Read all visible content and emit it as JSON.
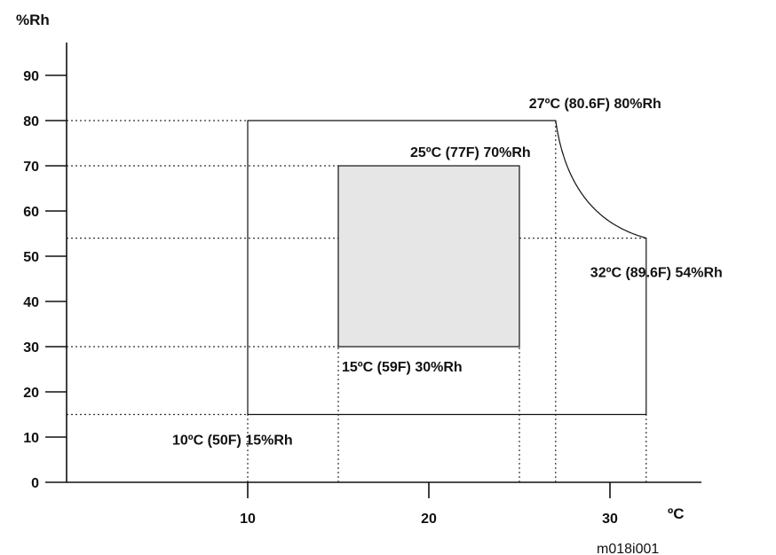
{
  "chart_data": {
    "type": "area",
    "title": "",
    "xlabel": "ºC",
    "ylabel": "%Rh",
    "xlim": [
      0,
      35
    ],
    "ylim": [
      0,
      100
    ],
    "x_ticks": [
      {
        "value": 10,
        "label": "10"
      },
      {
        "value": 20,
        "label": "20"
      },
      {
        "value": 30,
        "label": "30"
      }
    ],
    "y_ticks": [
      {
        "value": 0,
        "label": "0"
      },
      {
        "value": 10,
        "label": "10"
      },
      {
        "value": 20,
        "label": "20"
      },
      {
        "value": 30,
        "label": "30"
      },
      {
        "value": 40,
        "label": "40"
      },
      {
        "value": 50,
        "label": "50"
      },
      {
        "value": 60,
        "label": "60"
      },
      {
        "value": 70,
        "label": "70"
      },
      {
        "value": 80,
        "label": "80"
      },
      {
        "value": 90,
        "label": "90"
      }
    ],
    "regions": [
      {
        "name": "operating-range",
        "fill": "none",
        "outline": [
          {
            "x": 10,
            "y": 15
          },
          {
            "x": 10,
            "y": 80
          },
          {
            "x": 27,
            "y": 80
          },
          {
            "x": 32,
            "y": 54
          },
          {
            "x": 32,
            "y": 15
          }
        ],
        "curved_edge": {
          "from": {
            "x": 27,
            "y": 80
          },
          "to": {
            "x": 32,
            "y": 54
          }
        }
      },
      {
        "name": "recommended-range",
        "fill": "#e6e6e6",
        "outline": [
          {
            "x": 15,
            "y": 30
          },
          {
            "x": 15,
            "y": 70
          },
          {
            "x": 25,
            "y": 70
          },
          {
            "x": 25,
            "y": 30
          }
        ]
      }
    ],
    "annotations": [
      {
        "x": 27,
        "y": 80,
        "text": "27ºC (80.6F) 80%Rh"
      },
      {
        "x": 25,
        "y": 70,
        "text": "25ºC (77F) 70%Rh"
      },
      {
        "x": 32,
        "y": 54,
        "text": "32ºC (89.6F) 54%Rh"
      },
      {
        "x": 15,
        "y": 30,
        "text": "15ºC (59F) 30%Rh"
      },
      {
        "x": 10,
        "y": 15,
        "text": "10ºC (50F) 15%Rh"
      }
    ],
    "figure_id": "m018i001",
    "grid": false,
    "reference_lines": "dotted"
  }
}
